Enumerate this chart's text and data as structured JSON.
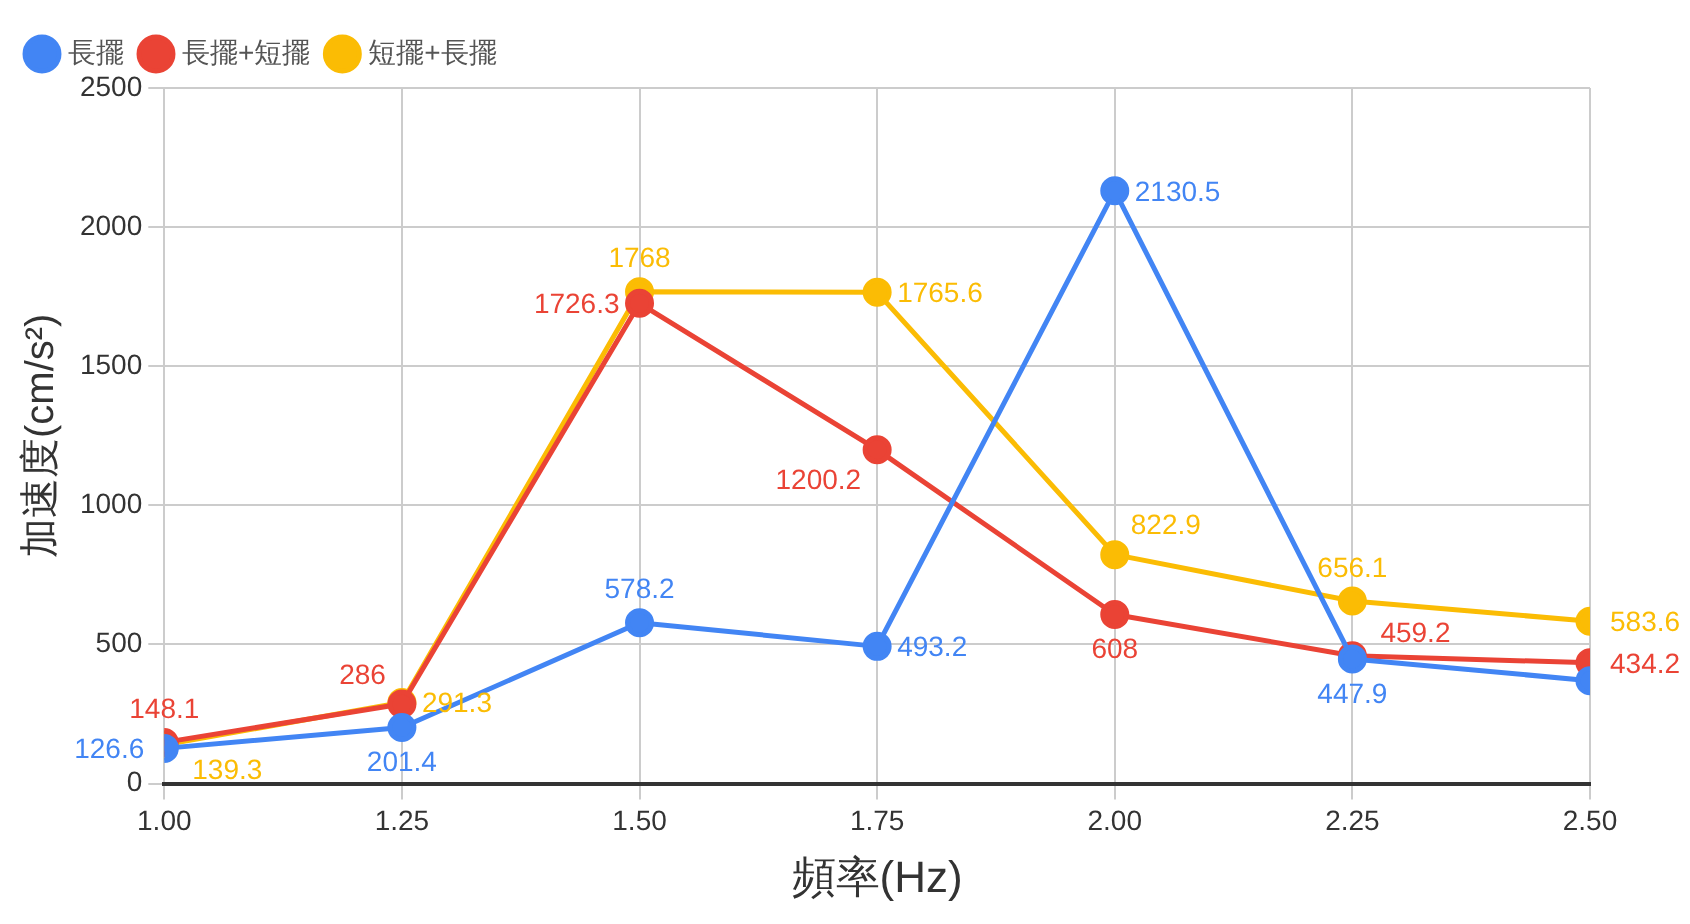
{
  "chart_data": {
    "type": "line",
    "xlabel": "頻率(Hz)",
    "ylabel": "加速度(cm/s²)",
    "x": [
      1,
      1.25,
      1.5,
      1.75,
      2,
      2.25,
      2.5
    ],
    "xlim": [
      1,
      2.5
    ],
    "xticks": [
      {
        "value": 1,
        "label": "1.00"
      },
      {
        "value": 1.25,
        "label": "1.25"
      },
      {
        "value": 1.5,
        "label": "1.50"
      },
      {
        "value": 1.75,
        "label": "1.75"
      },
      {
        "value": 2,
        "label": "2.00"
      },
      {
        "value": 2.25,
        "label": "2.25"
      },
      {
        "value": 2.5,
        "label": "2.50"
      }
    ],
    "ylim": [
      0,
      2500
    ],
    "yticks": [
      0,
      500,
      1000,
      1500,
      2000,
      2500
    ],
    "grid": true,
    "legend": "top left",
    "marker": "circle",
    "line_style": "solid",
    "series": [
      {
        "name": "長擺",
        "color": "#4285f4",
        "values": [
          126.6,
          201.4,
          578.2,
          493.2,
          2130.5,
          447.9,
          370
        ],
        "value_labels": [
          "126.6",
          "201.4",
          "578.2",
          "493.2",
          "2130.5",
          "447.9",
          null
        ]
      },
      {
        "name": "長擺+短擺",
        "color": "#ea4335",
        "values": [
          148.1,
          286,
          1726.3,
          1200.2,
          608,
          459.2,
          434.2
        ],
        "value_labels": [
          "148.1",
          "286",
          "1726.3",
          "1200.2",
          "608",
          "459.2",
          "434.2"
        ]
      },
      {
        "name": "短擺+長擺",
        "color": "#fbbc04",
        "values": [
          139.3,
          291.3,
          1768,
          1765.6,
          822.9,
          656.1,
          583.6
        ],
        "value_labels": [
          "139.3",
          "291.3",
          "1768",
          "1765.6",
          "822.9",
          "656.1",
          "583.6"
        ]
      }
    ]
  }
}
